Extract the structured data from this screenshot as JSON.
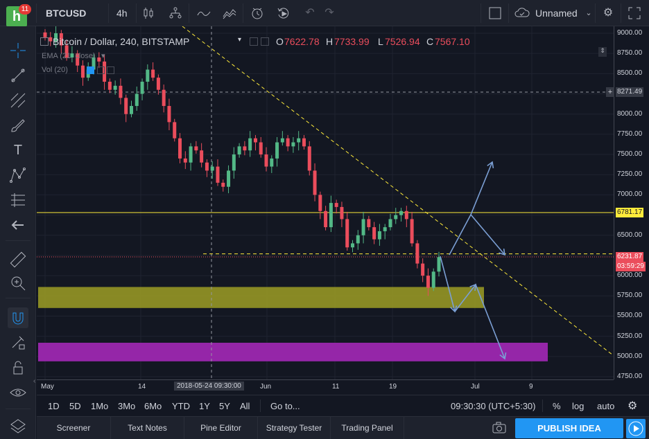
{
  "app": {
    "logo_letter": "h",
    "notification_count": "11"
  },
  "topbar": {
    "symbol": "BTCUSD",
    "interval": "4h",
    "layout_name": "Unnamed"
  },
  "legend": {
    "title": "Bitcoin / Dollar, 240, BITSTAMP",
    "open_label": "O",
    "open": "7622.78",
    "high_label": "H",
    "high": "7733.99",
    "low_label": "L",
    "low": "7526.94",
    "close_label": "C",
    "close": "7567.10",
    "ema": "EMA (21, close)",
    "vol": "Vol (20)"
  },
  "price_axis": {
    "ticks": [
      "9000.00",
      "8750.00",
      "8500.00",
      "8250.00",
      "8000.00",
      "7750.00",
      "7500.00",
      "7250.00",
      "7000.00",
      "6750.00",
      "6500.00",
      "6250.00",
      "6000.00",
      "5750.00",
      "5500.00",
      "5250.00",
      "5000.00",
      "4750.00"
    ],
    "crosshair_price": "8271.49",
    "resistance_price": "6781.17",
    "last_price": "6231.87",
    "countdown": "03:59:29"
  },
  "time_axis": {
    "labels": [
      "May",
      "14",
      "Jun",
      "11",
      "19",
      "Jul",
      "9"
    ],
    "crosshair_time": "2018-05-24 09:30:00"
  },
  "range_bar": {
    "ranges": [
      "1D",
      "5D",
      "1Mo",
      "3Mo",
      "6Mo",
      "YTD",
      "1Y",
      "5Y",
      "All"
    ],
    "goto": "Go to...",
    "clock": "09:30:30 (UTC+5:30)",
    "percent": "%",
    "log": "log",
    "auto": "auto"
  },
  "bottom_tabs": [
    "Screener",
    "Text Notes",
    "Pine Editor",
    "Strategy Tester",
    "Trading Panel"
  ],
  "publish_label": "PUBLISH IDEA",
  "colors": {
    "up": "#53b987",
    "down": "#eb4d5c",
    "yellow_line": "#ffeb3b",
    "yellow_zone": "#9e9d24",
    "purple_zone": "#9c27b0",
    "arrow": "#7b9fd4",
    "accent": "#2196f3"
  },
  "chart_data": {
    "type": "candlestick",
    "ylim": [
      4700,
      9100
    ],
    "candles_close_path": [
      8950,
      8900,
      9000,
      8850,
      8700,
      8750,
      8600,
      8450,
      8550,
      8700,
      8650,
      8400,
      8300,
      8350,
      8200,
      8000,
      8100,
      8250,
      8400,
      8550,
      8450,
      8300,
      8100,
      7900,
      7700,
      7450,
      7400,
      7600,
      7550,
      7400,
      7300,
      7350,
      7150,
      7100,
      7300,
      7500,
      7600,
      7550,
      7700,
      7650,
      7500,
      7350,
      7450,
      7650,
      7700,
      7600,
      7650,
      7700,
      7600,
      7300,
      7000,
      6800,
      6600,
      6900,
      6850,
      6700,
      6350,
      6400,
      6500,
      6700,
      6600,
      6450,
      6550,
      6600,
      6700,
      6750,
      6800,
      6700,
      6400,
      6150,
      6000,
      5850,
      6050,
      6230
    ]
  }
}
